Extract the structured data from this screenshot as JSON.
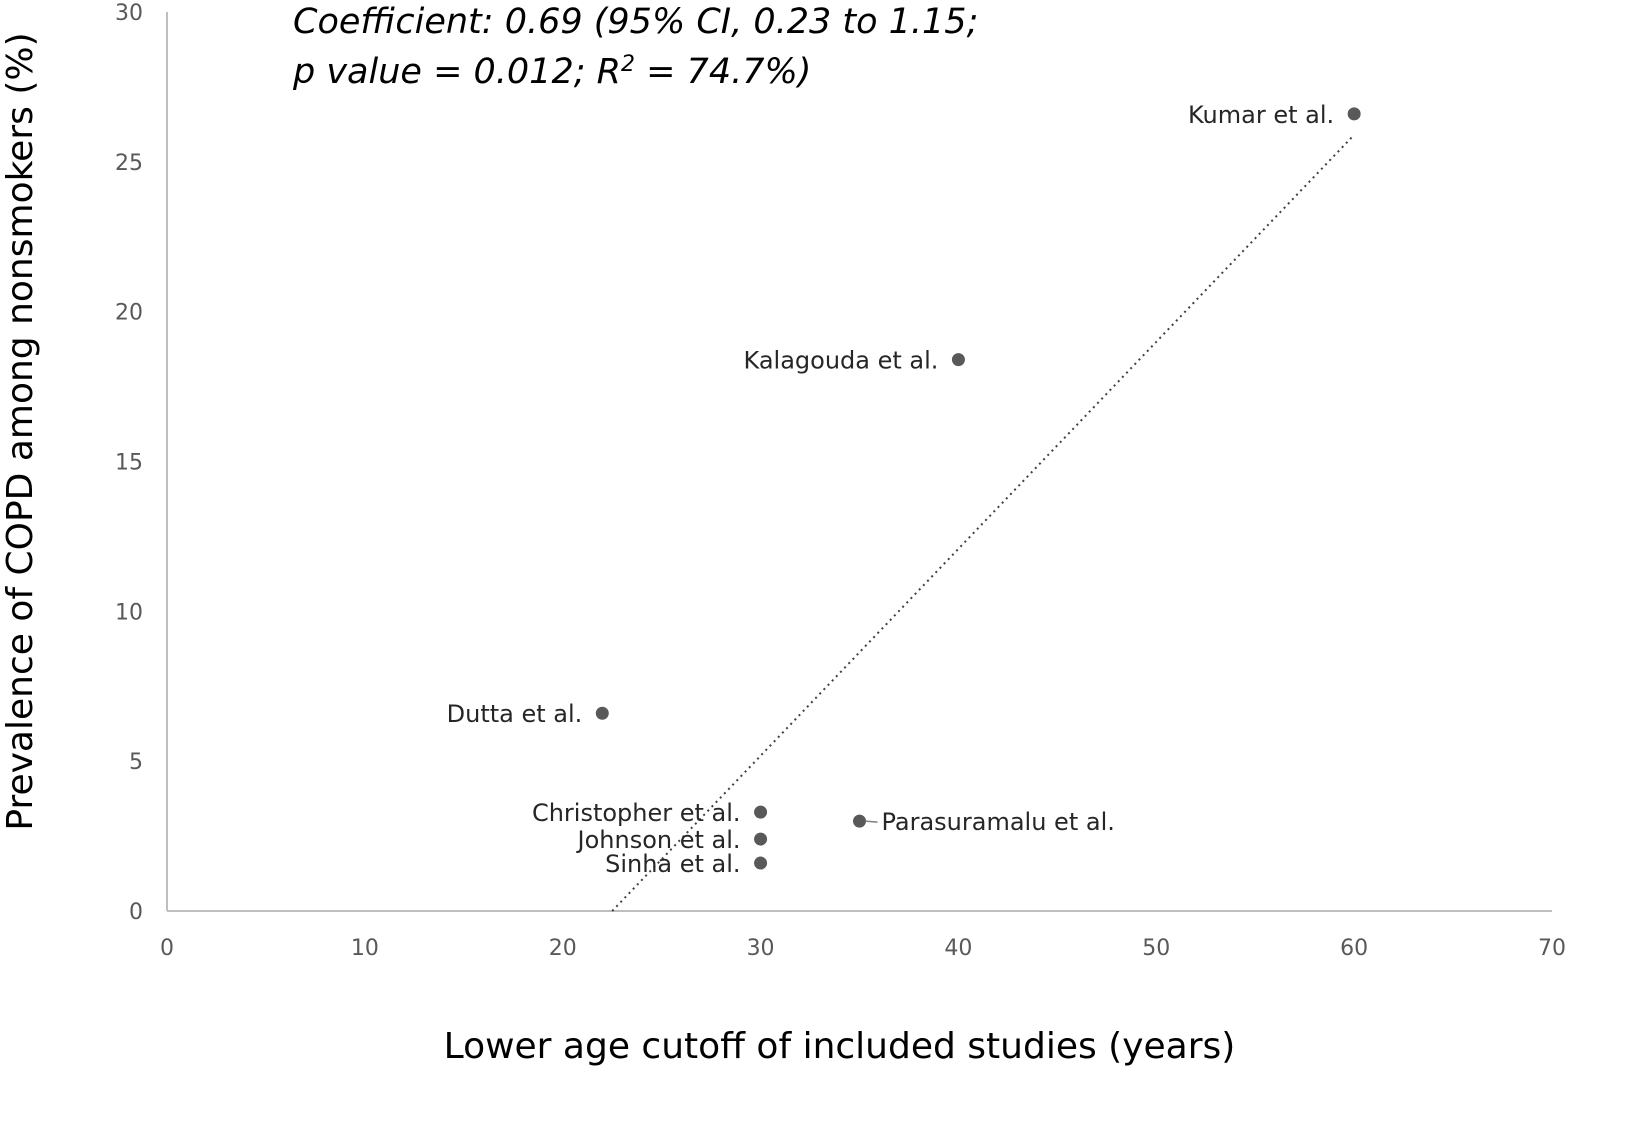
{
  "chart_data": {
    "type": "scatter",
    "xlabel": "Lower age cutoff of included studies (years)",
    "ylabel": "Prevalence of COPD among nonsmokers (%)",
    "xlim": [
      0,
      70
    ],
    "ylim": [
      0,
      30
    ],
    "x_ticks": [
      "0",
      "10",
      "20",
      "30",
      "40",
      "50",
      "60",
      "70"
    ],
    "y_ticks": [
      "0",
      "5",
      "10",
      "15",
      "20",
      "25",
      "30"
    ],
    "grid": false,
    "annotation": {
      "line1": "Coefficient: 0.69 (95% CI, 0.23 to 1.15;",
      "line2_pre": "p value = 0.012; R",
      "line2_sup": "2",
      "line2_post": " = 74.7%)"
    },
    "points": [
      {
        "label": "Kumar et al.",
        "x": 60,
        "y": 26.6
      },
      {
        "label": "Kalagouda et al.",
        "x": 40,
        "y": 18.4
      },
      {
        "label": "Dutta et al.",
        "x": 22,
        "y": 6.6
      },
      {
        "label": "Christopher et al.",
        "x": 30,
        "y": 3.3
      },
      {
        "label": "Johnson et al.",
        "x": 30,
        "y": 2.4
      },
      {
        "label": "Sinha et al.",
        "x": 30,
        "y": 1.6
      },
      {
        "label": "Parasuramalu et al.",
        "x": 35,
        "y": 3.0
      }
    ],
    "trendline": {
      "style": "dotted",
      "x": [
        22.5,
        60
      ],
      "y": [
        0,
        25.9
      ]
    },
    "colors": {
      "point": "#595959",
      "axis": "#bfbfbf",
      "trend": "#404040"
    }
  }
}
